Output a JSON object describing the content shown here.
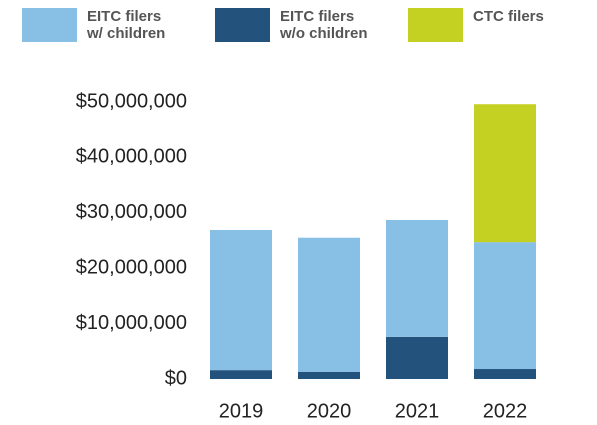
{
  "chart_data": {
    "type": "bar",
    "stacked": true,
    "categories": [
      "2019",
      "2020",
      "2021",
      "2022"
    ],
    "series": [
      {
        "name": "EITC filers w/ children",
        "color": "#88bfe4",
        "values": [
          25300000,
          24200000,
          21100000,
          22900000
        ]
      },
      {
        "name": "EITC filers w/o children",
        "color": "#23527c",
        "values": [
          1600000,
          1300000,
          7600000,
          1800000
        ]
      },
      {
        "name": "CTC filers",
        "color": "#c4d123",
        "values": [
          null,
          null,
          null,
          24900000
        ]
      }
    ],
    "ylim": [
      0,
      50000000
    ],
    "yticks": [
      {
        "value": 0,
        "label": "$0"
      },
      {
        "value": 10000000,
        "label": "$10,000,000"
      },
      {
        "value": 20000000,
        "label": "$20,000,000"
      },
      {
        "value": 30000000,
        "label": "$30,000,000"
      },
      {
        "value": 40000000,
        "label": "$40,000,000"
      },
      {
        "value": 50000000,
        "label": "$50,000,000"
      }
    ],
    "grid": false
  }
}
